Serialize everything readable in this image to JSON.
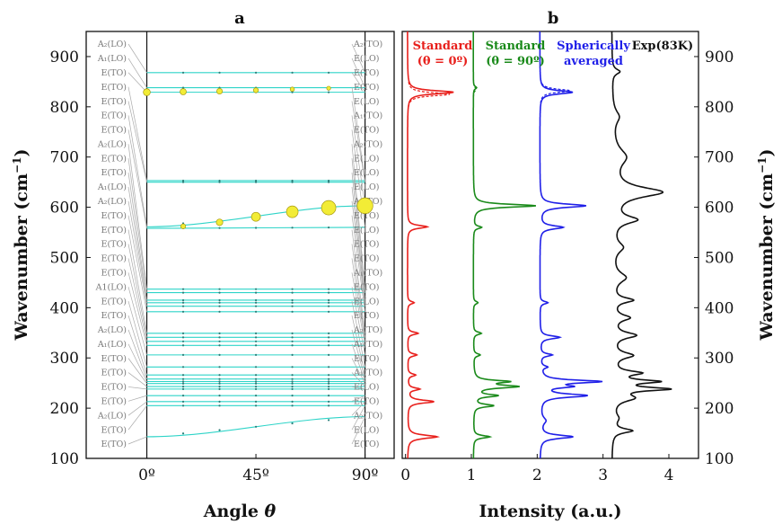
{
  "chart_data": [
    {
      "panel": "a",
      "type": "line",
      "xlabel": "Angle θ",
      "ylabel": "Wavenumber (cm⁻¹)",
      "xlim": [
        -25,
        102
      ],
      "ylim": [
        100,
        950
      ],
      "x_ticks": [
        0,
        45,
        90
      ],
      "x_tick_labels": [
        "0º",
        "45º",
        "90º"
      ],
      "y_ticks": [
        100,
        200,
        300,
        400,
        500,
        600,
        700,
        800,
        900
      ],
      "left_modes": [
        "A₂(LO)",
        "A₁(LO)",
        "E(TO)",
        "E(TO)",
        "E(TO)",
        "E(TO)",
        "E(TO)",
        "A₂(LO)",
        "E(TO)",
        "E(TO)",
        "A₁(LO)",
        "A₂(LO)",
        "E(TO)",
        "E(TO)",
        "E(TO)",
        "E(TO)",
        "E(TO)",
        "A1(LO)",
        "E(TO)",
        "E(TO)",
        "A₂(LO)",
        "A₁(LO)",
        "E(TO)",
        "E(TO)",
        "E(TO)",
        "E(TO)",
        "A₂(LO)",
        "E(TO)",
        "E(TO)"
      ],
      "right_modes": [
        "A₂(TO)",
        "E(LO)",
        "E(TO)",
        "E(TO)",
        "E(LO)",
        "A₁(TO)",
        "E(TO)",
        "A₂(TO)",
        "E(LO)",
        "E(LO)",
        "E(LO)",
        "A₂(TO)",
        "E(TO)",
        "E(LO)",
        "E(TO)",
        "E(TO)",
        "A₁(TO)",
        "E(TO)",
        "E(LO)",
        "E(TO)",
        "A₂(TO)",
        "A₁(TO)",
        "E(TO)",
        "A₁(TO)",
        "E(LO)",
        "E(TO)",
        "A₂(TO)",
        "E(LO)",
        "E(TO)"
      ],
      "left_mode_freqs": [
        868,
        838,
        829,
        653,
        650,
        561,
        558,
        437,
        430,
        415,
        410,
        403,
        392,
        349,
        341,
        333,
        325,
        306,
        282,
        266,
        258,
        253,
        249,
        243,
        238,
        225,
        213,
        205,
        143
      ],
      "right_mode_freqs": [
        868,
        838,
        829,
        653,
        650,
        603,
        560,
        437,
        430,
        415,
        410,
        403,
        392,
        349,
        341,
        333,
        325,
        306,
        282,
        266,
        258,
        253,
        249,
        243,
        238,
        225,
        213,
        205,
        183
      ],
      "bubbles": [
        {
          "x": 0,
          "y": 829,
          "size": 0.25
        },
        {
          "x": 15,
          "y": 830,
          "size": 0.2
        },
        {
          "x": 30,
          "y": 831,
          "size": 0.16
        },
        {
          "x": 45,
          "y": 833,
          "size": 0.1
        },
        {
          "x": 60,
          "y": 835,
          "size": 0.05
        },
        {
          "x": 75,
          "y": 837,
          "size": 0.03
        },
        {
          "x": 15,
          "y": 562,
          "size": 0.1
        },
        {
          "x": 30,
          "y": 570,
          "size": 0.22
        },
        {
          "x": 45,
          "y": 581,
          "size": 0.4
        },
        {
          "x": 60,
          "y": 591,
          "size": 0.6
        },
        {
          "x": 75,
          "y": 599,
          "size": 0.8
        },
        {
          "x": 90,
          "y": 603,
          "size": 0.9
        }
      ]
    },
    {
      "panel": "b",
      "type": "line",
      "xlabel": "Intensity (a.u.)",
      "ylabel": "Wavenumber (cm⁻¹)",
      "xlim": [
        -0.05,
        4.45
      ],
      "ylim": [
        100,
        950
      ],
      "x_ticks": [
        0,
        1,
        2,
        3,
        4
      ],
      "y_ticks": [
        100,
        200,
        300,
        400,
        500,
        600,
        700,
        800,
        900
      ],
      "series": [
        {
          "name": "Standard (θ = 0º)",
          "color": "#e8201c",
          "offset": 0,
          "base": 0.03,
          "dashed_peak": 825,
          "peaks": [
            [
              143,
              0.45,
              4
            ],
            [
              213,
              0.4,
              3.5
            ],
            [
              238,
              0.18,
              3
            ],
            [
              266,
              0.12,
              3
            ],
            [
              306,
              0.14,
              3
            ],
            [
              349,
              0.16,
              3
            ],
            [
              410,
              0.1,
              3
            ],
            [
              561,
              0.3,
              3.5
            ],
            [
              829,
              0.7,
              4
            ]
          ]
        },
        {
          "name": "Standard (θ = 90º)",
          "color": "#1a8a1a",
          "offset": 1,
          "base": 0.03,
          "dashed_peak": 835,
          "peaks": [
            [
              143,
              0.25,
              3
            ],
            [
              205,
              0.3,
              3
            ],
            [
              225,
              0.35,
              3
            ],
            [
              243,
              0.65,
              3.5
            ],
            [
              253,
              0.5,
              3
            ],
            [
              306,
              0.1,
              3
            ],
            [
              349,
              0.12,
              3
            ],
            [
              410,
              0.07,
              3
            ],
            [
              560,
              0.12,
              3
            ],
            [
              603,
              0.95,
              3.5
            ],
            [
              838,
              0.05,
              3
            ]
          ]
        },
        {
          "name": "Spherically averaged",
          "color": "#1f1fe8",
          "offset": 2,
          "base": 0.04,
          "dashed_peak": 832,
          "peaks": [
            [
              143,
              0.5,
              4
            ],
            [
              175,
              0.08,
              8
            ],
            [
              225,
              0.7,
              4
            ],
            [
              243,
              0.4,
              3
            ],
            [
              253,
              0.9,
              3.5
            ],
            [
              282,
              0.1,
              3
            ],
            [
              306,
              0.18,
              3
            ],
            [
              341,
              0.3,
              3.5
            ],
            [
              410,
              0.12,
              3
            ],
            [
              560,
              0.35,
              4
            ],
            [
              603,
              0.7,
              4
            ],
            [
              829,
              0.5,
              4
            ]
          ]
        },
        {
          "name": "Exp(83K)",
          "color": "#111111",
          "offset": 3.08,
          "base": 0.05,
          "dashed_peak": null,
          "peaks": [
            [
              155,
              0.3,
              5
            ],
            [
              180,
              0.08,
              10
            ],
            [
              220,
              0.3,
              8
            ],
            [
              238,
              0.8,
              4
            ],
            [
              253,
              0.65,
              4
            ],
            [
              270,
              0.4,
              5
            ],
            [
              305,
              0.3,
              7
            ],
            [
              345,
              0.35,
              7
            ],
            [
              380,
              0.25,
              7
            ],
            [
              415,
              0.3,
              6
            ],
            [
              460,
              0.2,
              12
            ],
            [
              520,
              0.15,
              12
            ],
            [
              575,
              0.35,
              9
            ],
            [
              630,
              0.75,
              12
            ],
            [
              700,
              0.2,
              20
            ],
            [
              780,
              0.1,
              15
            ],
            [
              870,
              0.12,
              6
            ]
          ]
        }
      ]
    }
  ],
  "labels": {
    "panel_a": "a",
    "panel_b": "b",
    "legend_red_1": "Standard",
    "legend_red_2": "(θ = 0º)",
    "legend_green_1": "Standard",
    "legend_green_2": "(θ = 90º)",
    "legend_blue_1": "Spherically",
    "legend_blue_2": "averaged",
    "legend_black": "Exp(83K)"
  },
  "colors": {
    "connector": "#2ed4c8",
    "bubble": "#f2ec36",
    "leader": "#aaaaaa",
    "red": "#e8201c",
    "green": "#1a8a1a",
    "blue": "#1f1fe8",
    "black": "#111111"
  }
}
